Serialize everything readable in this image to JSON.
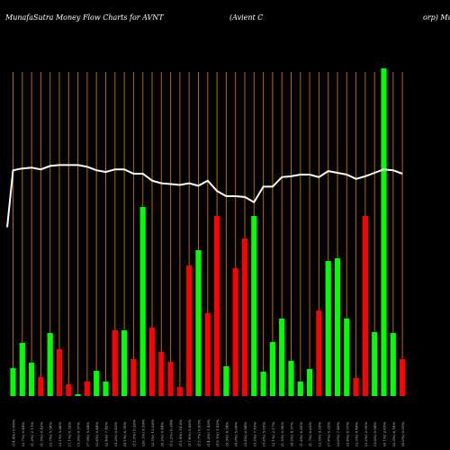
{
  "header": {
    "left": "MunafaSutra  Money Flow  Charts for AVNT",
    "center": "(Avient C",
    "right": "orp) Mu"
  },
  "colors": {
    "background": "#000000",
    "up": "#00ff00",
    "down": "#ff0000",
    "grid": "#b36a00",
    "line": "#ffffff",
    "text": "#ffffff",
    "label": "#cccccc"
  },
  "chart_data": {
    "type": "bar",
    "series": [
      {
        "kind": "bar",
        "values": [
          31,
          59,
          37,
          21,
          70,
          52,
          13,
          2,
          16,
          28,
          16,
          73,
          73,
          41,
          210,
          76,
          49,
          38,
          10,
          145,
          162,
          92,
          200,
          33,
          142,
          175,
          200,
          27,
          60,
          86,
          39,
          16,
          30,
          95,
          150,
          153,
          86,
          20,
          200,
          71,
          390,
          70,
          41
        ],
        "directions": [
          "up",
          "up",
          "up",
          "down",
          "up",
          "down",
          "down",
          "up",
          "down",
          "up",
          "up",
          "down",
          "up",
          "down",
          "up",
          "down",
          "down",
          "down",
          "down",
          "down",
          "up",
          "down",
          "down",
          "up",
          "down",
          "down",
          "up",
          "up",
          "up",
          "up",
          "up",
          "up",
          "up",
          "down",
          "up",
          "up",
          "up",
          "down",
          "down",
          "up",
          "up",
          "up",
          "down"
        ]
      },
      {
        "kind": "line",
        "values": [
          54,
          56,
          57,
          55,
          59,
          60,
          60,
          60,
          58,
          54,
          52,
          55,
          55,
          50,
          50,
          42,
          39,
          38,
          37,
          39,
          36,
          42,
          30,
          24,
          24,
          23,
          17,
          35,
          35,
          46,
          47,
          49,
          49,
          46,
          53,
          51,
          49,
          44,
          47,
          51,
          55,
          54,
          50
        ],
        "start_value": -12
      }
    ],
    "categories": [
      "(14.4%) 0.00%",
      "(2.7%) 0.44%",
      "(1.3%) 2.11%",
      "(1.5%) 0.43%",
      "(3.7%) 5.58%",
      "(3.1%) 5.88%",
      "(7.1%) 0.33%",
      "(5.3%) 0.57%",
      "(7.9%) 5.84%",
      "(2.6%) 0.44%",
      "(2.4%) 7.42%",
      "(5.2%) 0.43%",
      "(4.1%) 8.76%",
      "(15.3%) 0.36%",
      "(26.1%) 9.59%",
      "(2.5%) 12.08%",
      "(8.2%) 0.44%",
      "(12.2%) 0.34%",
      "(13.9%) 14.8%",
      "(17.8%) 0.86%",
      "(15.7%) 0.93%",
      "(14.3%) 1.45%",
      "(19.1%) 1.82%",
      "(5.3%) 4.54%",
      "(4.0%) 5.06%",
      "(5.4%) 6.94%",
      "(5.2%) 7.83%",
      "(5.6%) 5.03%",
      "(2.1%) 2.17%",
      "(1.5%) 0.98%",
      "(4.2%) 4.57%",
      "(1.6%) 6.85%",
      "(1.7%) 6.63%",
      "(3.5%) 9.25%",
      "(7.6%) 0.22%",
      "(3.0%) 7.49%",
      "(3.8%) 8.57%",
      "(3.3%) 0.49%",
      "(3.2%) 2.95%",
      "(3.0%) 0.94%",
      "(6.1%) 2.65%",
      "(2.3%) 6.16%",
      "(8.0%) 0.05%"
    ],
    "grid": true,
    "legend": "none"
  }
}
